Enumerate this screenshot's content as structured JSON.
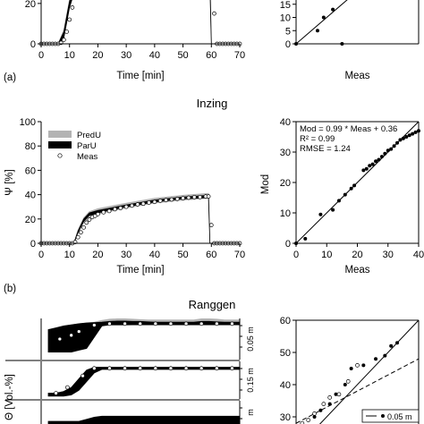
{
  "panel_labels": [
    "(a)",
    "(b)"
  ],
  "titles": {
    "b": "Inzing",
    "c": "Ranggen"
  },
  "chart_data": [
    {
      "id": "a_time",
      "type": "line",
      "title": "",
      "xlabel": "Time [min]",
      "ylabel": "",
      "xlim": [
        0,
        70
      ],
      "ylim": [
        0,
        35
      ],
      "x_ticks": [
        0,
        10,
        20,
        30,
        40,
        50,
        60,
        70
      ],
      "y_ticks": [
        0,
        20
      ],
      "series": [
        {
          "style": "band-grey",
          "x": [
            0,
            6,
            8,
            10,
            12,
            13,
            15,
            20,
            30,
            40,
            50,
            59.5,
            60,
            62,
            70
          ],
          "lower": [
            0,
            0,
            5,
            20,
            29,
            29,
            28.5,
            28.5,
            28.5,
            28.5,
            28.5,
            28.5,
            0,
            0,
            0
          ],
          "upper": [
            0,
            0,
            7,
            22,
            31,
            32,
            32,
            32,
            32,
            32,
            32,
            32,
            0,
            0,
            0
          ]
        },
        {
          "style": "band-black",
          "x": [
            0,
            6,
            8,
            10,
            12,
            13,
            15,
            20,
            30,
            40,
            50,
            59.5,
            60,
            62,
            70
          ],
          "lower": [
            0,
            0,
            3,
            18,
            27,
            28,
            28,
            28,
            28,
            28,
            28,
            28,
            0,
            0,
            0
          ],
          "upper": [
            0,
            0,
            6,
            21,
            30,
            31,
            31,
            31,
            31,
            31,
            31,
            31,
            0,
            0,
            0
          ]
        },
        {
          "style": "points-open",
          "x": [
            0,
            1,
            2,
            3,
            4,
            5,
            6,
            7,
            8,
            9,
            10,
            11,
            12,
            13,
            14,
            15,
            16,
            17,
            18,
            19,
            20,
            22,
            24,
            26,
            28,
            30,
            32,
            34,
            36,
            38,
            40,
            42,
            44,
            46,
            48,
            50,
            52,
            54,
            56,
            58,
            60,
            61,
            62,
            63,
            64,
            65,
            66,
            67,
            68,
            69,
            70
          ],
          "y": [
            0,
            0,
            0,
            0,
            0,
            0,
            0,
            0.5,
            2,
            6,
            12,
            18,
            24,
            27,
            29,
            29.5,
            29.5,
            29.5,
            29.5,
            29.5,
            29.5,
            29.5,
            29.5,
            29.5,
            29.5,
            29.5,
            29.5,
            29.5,
            29.5,
            29.5,
            29.5,
            29.5,
            29.5,
            29.5,
            29.5,
            29.5,
            29.5,
            29.5,
            29.5,
            29.5,
            29.5,
            15,
            0,
            0,
            0,
            0,
            0,
            0,
            0,
            0,
            0
          ]
        }
      ]
    },
    {
      "id": "a_scatter",
      "type": "scatter",
      "xlabel": "Meas",
      "ylabel": "",
      "xlim": [
        0,
        40
      ],
      "ylim": [
        0,
        20
      ],
      "y_ticks": [
        0,
        5,
        10,
        15
      ],
      "identity_line": true,
      "series": [
        {
          "x": [
            0,
            7,
            9,
            12,
            15
          ],
          "y": [
            0,
            5,
            10,
            13,
            0
          ]
        }
      ]
    },
    {
      "id": "b_time",
      "type": "line",
      "title": "Inzing",
      "xlabel": "Time [min]",
      "ylabel": "Ψ [%]",
      "xlim": [
        0,
        70
      ],
      "ylim": [
        0,
        100
      ],
      "x_ticks": [
        0,
        10,
        20,
        30,
        40,
        50,
        60,
        70
      ],
      "y_ticks": [
        0,
        20,
        40,
        60,
        80,
        100
      ],
      "legend": {
        "position": "top-left",
        "entries": [
          "PredU",
          "ParU",
          "Meas"
        ]
      },
      "series": [
        {
          "name": "PredU",
          "style": "band-grey",
          "x": [
            0,
            11.5,
            13,
            15,
            17,
            20,
            30,
            40,
            50,
            59,
            59.5,
            70
          ],
          "lower": [
            0,
            0,
            8,
            17,
            22,
            24,
            29,
            33,
            35.5,
            37,
            0,
            0
          ],
          "upper": [
            0,
            0,
            11,
            21,
            26,
            28.5,
            33,
            37,
            39.5,
            41,
            0,
            0
          ]
        },
        {
          "name": "ParU",
          "style": "band-black",
          "x": [
            0,
            11.5,
            13,
            15,
            17,
            20,
            30,
            40,
            50,
            59,
            59.5,
            70
          ],
          "lower": [
            0,
            0,
            9,
            18,
            23,
            25,
            30,
            34,
            36.5,
            37.5,
            0,
            0
          ],
          "upper": [
            0,
            0,
            10,
            20,
            25,
            27,
            31.5,
            35.5,
            38,
            39.5,
            0,
            0
          ]
        },
        {
          "name": "Meas",
          "style": "points-open",
          "x": [
            0,
            1,
            2,
            3,
            4,
            5,
            6,
            7,
            8,
            9,
            10,
            11,
            12,
            13,
            14,
            15,
            16,
            17,
            18,
            19,
            20,
            22,
            24,
            26,
            28,
            30,
            32,
            34,
            36,
            38,
            40,
            42,
            44,
            46,
            48,
            50,
            52,
            54,
            56,
            58,
            59,
            60,
            61,
            62,
            63,
            64,
            65,
            66,
            67,
            68,
            69,
            70
          ],
          "y": [
            0,
            0,
            0,
            0,
            0,
            0,
            0,
            0,
            0,
            0,
            0,
            0,
            1,
            5,
            9,
            13,
            17,
            19.5,
            21.5,
            22.5,
            24,
            25.5,
            26.5,
            28,
            29,
            30,
            31,
            32,
            32.5,
            33.5,
            34,
            35,
            35.5,
            36,
            36.5,
            37,
            37.5,
            38,
            38,
            38.5,
            38.5,
            15,
            0,
            0,
            0,
            0,
            0,
            0,
            0,
            0,
            0,
            0
          ]
        }
      ]
    },
    {
      "id": "b_scatter",
      "type": "scatter",
      "xlabel": "Meas",
      "ylabel": "Mod",
      "xlim": [
        0,
        40
      ],
      "ylim": [
        0,
        40
      ],
      "x_ticks": [
        0,
        10,
        20,
        30,
        40
      ],
      "y_ticks": [
        0,
        10,
        20,
        30,
        40
      ],
      "identity_line": true,
      "annotation": [
        "Mod = 0.99 * Meas + 0.36",
        "R² = 0.99",
        "RMSE = 1.24"
      ],
      "series": [
        {
          "x": [
            0,
            3,
            8,
            12,
            14,
            16,
            18,
            19,
            22,
            23,
            24,
            25,
            26,
            27,
            28,
            29,
            30,
            31,
            32,
            33,
            34,
            35,
            36,
            37,
            38,
            39,
            40
          ],
          "y": [
            0,
            1.5,
            9.5,
            11,
            14,
            16,
            18,
            19,
            24,
            24.5,
            25.5,
            26,
            27,
            27.5,
            28.5,
            29.5,
            30.5,
            31,
            32,
            33,
            34,
            34.5,
            35,
            35.5,
            36,
            36.5,
            37
          ]
        }
      ]
    },
    {
      "id": "c_time",
      "type": "area",
      "title": "Ranggen",
      "ylabel": "Θ [Vol.-%]",
      "panels": [
        {
          "label": "0.05 m",
          "x": [
            0,
            2,
            4,
            6,
            8,
            10,
            12,
            14,
            16,
            18,
            20,
            22,
            24,
            26,
            28,
            30,
            32,
            34,
            36,
            38,
            40,
            42,
            44,
            46,
            48,
            50
          ],
          "lower": [
            2,
            2,
            2,
            2,
            2.5,
            3,
            6,
            9,
            9.3,
            9.3,
            9.3,
            9.3,
            9.3,
            9.3,
            9.3,
            9.3,
            9.3,
            9.3,
            9.3,
            9.3,
            9.3,
            9.3,
            9.3,
            9.3,
            9.3,
            9.3
          ],
          "upper": [
            8,
            8.5,
            9,
            9.3,
            9.6,
            9.8,
            9.9,
            10,
            10.2,
            10.3,
            10.3,
            10.2,
            10.2,
            10.1,
            10,
            10,
            10,
            10,
            10,
            10,
            10.2,
            10.2,
            10.1,
            10,
            10,
            10
          ],
          "grey_lower": [
            2,
            2,
            2,
            2,
            2.5,
            3,
            6,
            9,
            9.2,
            9.2,
            9.2,
            9.3,
            9.3,
            9.3,
            9.3,
            9.3,
            9.3,
            9.3,
            9.3,
            9.3,
            9.3,
            9.3,
            9.3,
            9.3,
            9.3,
            9.3
          ],
          "grey_upper": [
            8,
            8.5,
            9,
            9.3,
            9.6,
            9.8,
            10,
            10.5,
            10.8,
            10.9,
            10.9,
            10.8,
            10.7,
            10.6,
            10.6,
            10.6,
            10.6,
            10.6,
            10.6,
            10.6,
            10.9,
            10.9,
            10.8,
            10.6,
            10.6,
            10.6
          ],
          "meas_x": [
            3,
            6,
            8,
            12,
            16,
            20,
            24,
            28,
            32,
            36,
            40,
            44,
            48
          ],
          "meas_y": [
            5.5,
            6.5,
            7.5,
            9.2,
            9.6,
            9.6,
            9.6,
            9.6,
            9.6,
            9.6,
            9.6,
            9.6,
            9.6
          ]
        },
        {
          "label": "0.15 m",
          "x": [
            0,
            2,
            4,
            6,
            8,
            10,
            12,
            14,
            16,
            18,
            20,
            22,
            24,
            26,
            28,
            30,
            32,
            34,
            36,
            38,
            40,
            42,
            44,
            46,
            48,
            50
          ],
          "lower": [
            4,
            4,
            4,
            4.2,
            5,
            6.5,
            8,
            8.6,
            8.6,
            8.6,
            8.6,
            8.6,
            8.6,
            8.6,
            8.6,
            8.6,
            8.6,
            8.6,
            8.6,
            8.6,
            8.6,
            8.6,
            8.6,
            8.6,
            8.6,
            8.6
          ],
          "upper": [
            4.5,
            4.5,
            4.8,
            5.5,
            7,
            8.5,
            9,
            9,
            9,
            9,
            9,
            9,
            9,
            9,
            9,
            9,
            9,
            9,
            9,
            9,
            9,
            9,
            9,
            9,
            9,
            9
          ],
          "meas_x": [
            2,
            5,
            9,
            12,
            16,
            20,
            24,
            28,
            32,
            36,
            40,
            44,
            48
          ],
          "meas_y": [
            4.5,
            5.5,
            7.5,
            8.8,
            8.8,
            8.8,
            8.8,
            8.8,
            8.8,
            8.8,
            8.8,
            8.8,
            8.8
          ]
        },
        {
          "label": "m",
          "x": [
            0,
            2,
            4,
            6,
            8,
            10,
            12,
            14,
            16,
            18,
            20,
            22,
            24,
            26,
            28,
            30,
            32,
            34,
            36,
            38,
            40,
            42,
            44,
            46,
            48,
            50
          ],
          "lower": [
            8,
            8,
            8,
            8,
            8,
            8.2,
            8.4,
            8.5,
            8.5,
            8.5,
            8.5,
            8.5,
            8.5,
            8.5,
            8.5,
            8.5,
            8.5,
            8.5,
            8.5,
            8.5,
            8.5,
            8.5,
            8.5,
            8.5,
            8.5,
            8.5
          ],
          "upper": [
            9,
            9,
            9,
            9,
            9,
            9.2,
            9.4,
            9.5,
            9.5,
            9.5,
            9.5,
            9.5,
            9.5,
            9.5,
            9.5,
            9.5,
            9.5,
            9.5,
            9.5,
            9.5,
            9.5,
            9.5,
            9.5,
            9.5,
            9.5,
            9.5
          ],
          "meas_x": [],
          "meas_y": []
        }
      ]
    },
    {
      "id": "c_scatter",
      "type": "scatter",
      "xlim": [
        20,
        60
      ],
      "ylim": [
        25,
        60
      ],
      "y_ticks": [
        30,
        40,
        50,
        60
      ],
      "identity_line": true,
      "legend": {
        "position": "bottom-right",
        "entries": [
          "0.05 m"
        ]
      },
      "series": [
        {
          "style": "filled",
          "x": [
            22,
            26,
            28,
            31,
            33,
            36,
            38,
            42,
            46,
            49,
            51,
            53
          ],
          "y": [
            27,
            30,
            32,
            34,
            37,
            40,
            45,
            46,
            48,
            49,
            52,
            53
          ]
        },
        {
          "style": "open",
          "x": [
            22,
            24,
            26,
            29,
            31,
            34,
            37,
            40
          ],
          "y": [
            28,
            29,
            31,
            34,
            36,
            37,
            41,
            46
          ]
        }
      ],
      "dashed_line": {
        "x": [
          20,
          60
        ],
        "y": [
          28,
          48
        ]
      }
    }
  ]
}
